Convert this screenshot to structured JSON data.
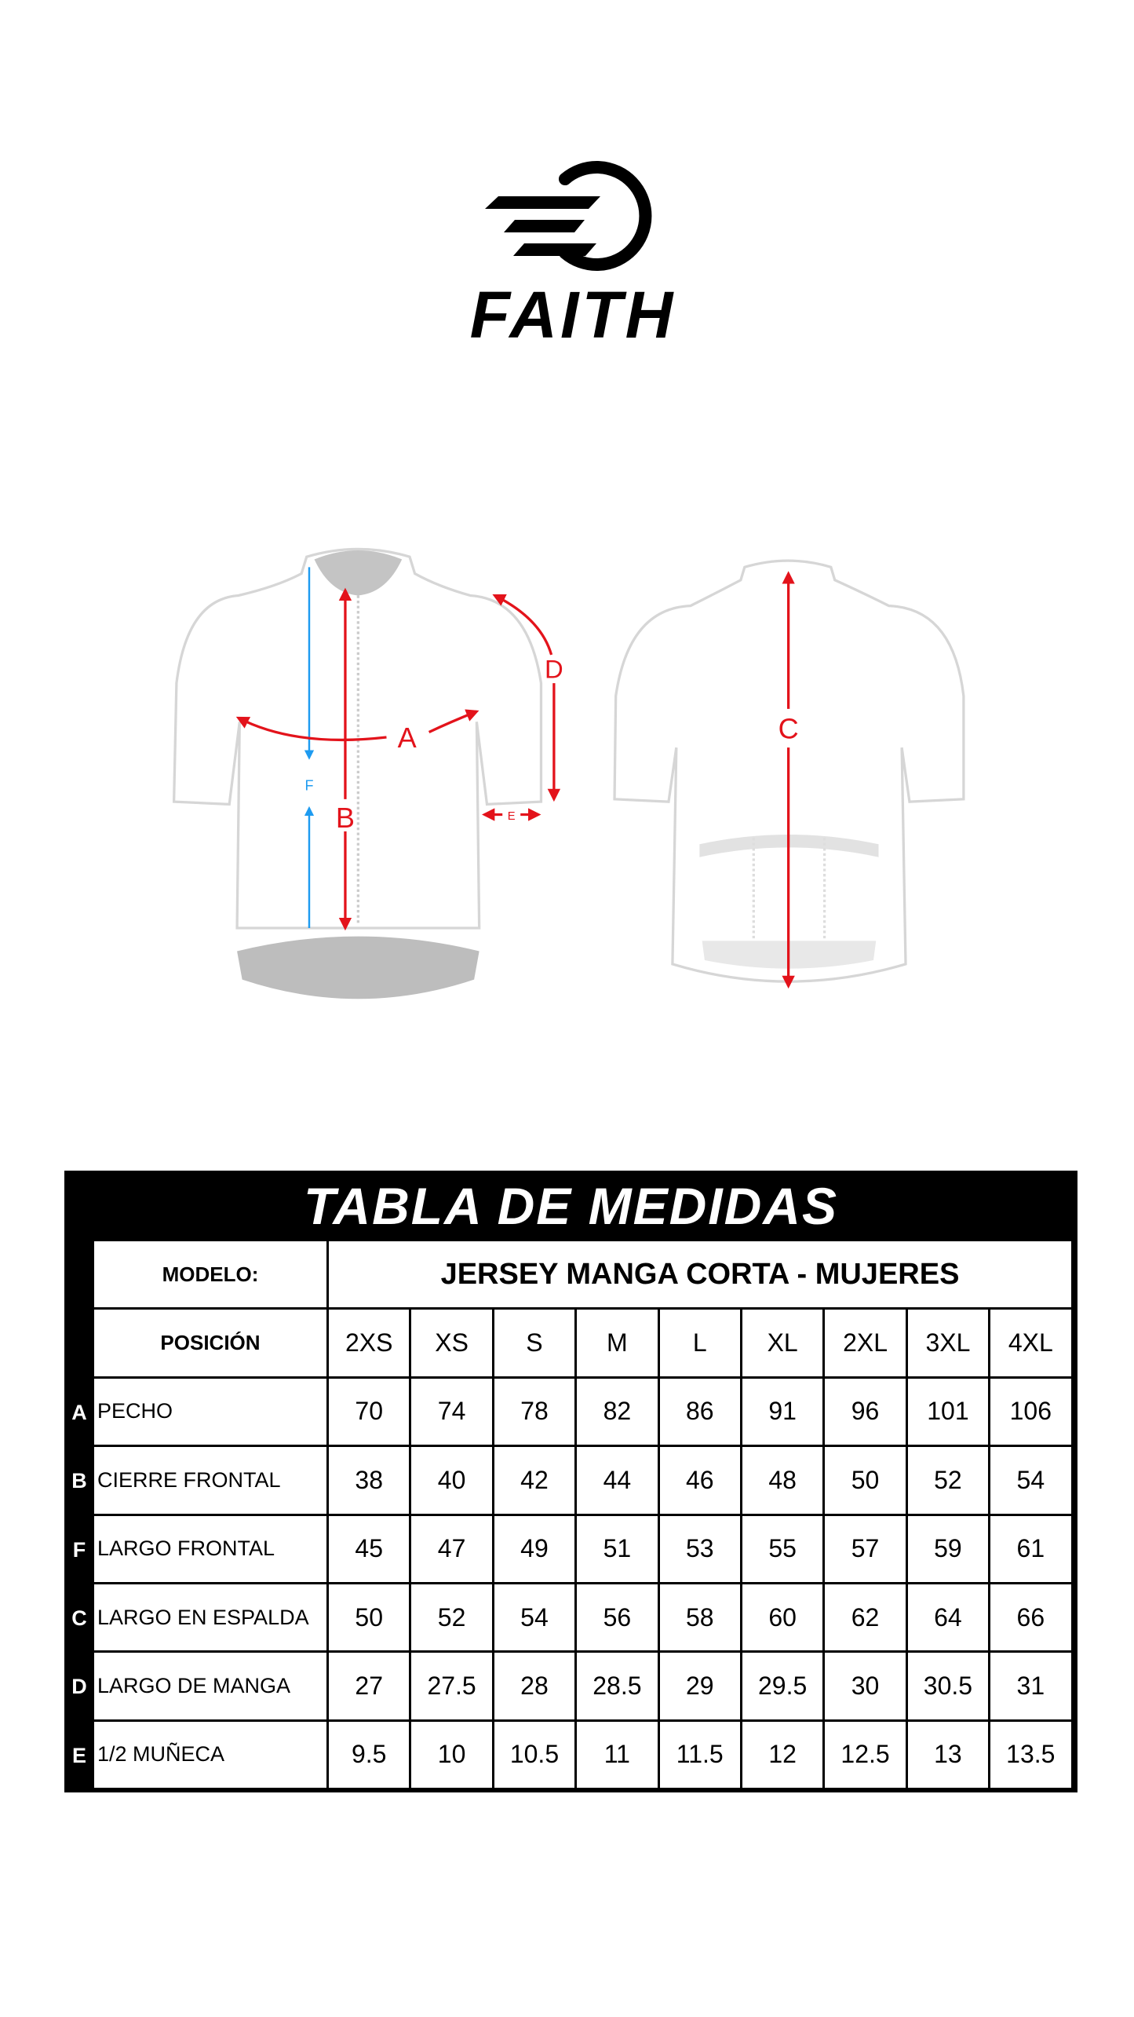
{
  "brand": {
    "name": "FAITH",
    "logo_icon": "speed-circle-logo"
  },
  "diagram": {
    "labels": {
      "A": "A",
      "B": "B",
      "C": "C",
      "D": "D",
      "E": "E",
      "F": "F"
    },
    "colors": {
      "measure_red": "#e3131b",
      "measure_blue": "#1e9bf0",
      "outline": "#d6d6d6",
      "trim": "#bdbdbd"
    }
  },
  "table": {
    "title": "TABLA DE MEDIDAS",
    "model_label": "MODELO:",
    "model_value": "JERSEY MANGA CORTA - MUJERES",
    "position_label": "POSICIÓN",
    "sizes": [
      "2XS",
      "XS",
      "S",
      "M",
      "L",
      "XL",
      "2XL",
      "3XL",
      "4XL"
    ],
    "rows": [
      {
        "letter": "A",
        "label": "PECHO",
        "values": [
          "70",
          "74",
          "78",
          "82",
          "86",
          "91",
          "96",
          "101",
          "106"
        ]
      },
      {
        "letter": "B",
        "label": "CIERRE FRONTAL",
        "values": [
          "38",
          "40",
          "42",
          "44",
          "46",
          "48",
          "50",
          "52",
          "54"
        ]
      },
      {
        "letter": "F",
        "label": "LARGO FRONTAL",
        "values": [
          "45",
          "47",
          "49",
          "51",
          "53",
          "55",
          "57",
          "59",
          "61"
        ]
      },
      {
        "letter": "C",
        "label": "LARGO EN ESPALDA",
        "values": [
          "50",
          "52",
          "54",
          "56",
          "58",
          "60",
          "62",
          "64",
          "66"
        ]
      },
      {
        "letter": "D",
        "label": "LARGO DE MANGA",
        "values": [
          "27",
          "27.5",
          "28",
          "28.5",
          "29",
          "29.5",
          "30",
          "30.5",
          "31"
        ]
      },
      {
        "letter": "E",
        "label": "1/2 MUÑECA",
        "values": [
          "9.5",
          "10",
          "10.5",
          "11",
          "11.5",
          "12",
          "12.5",
          "13",
          "13.5"
        ]
      }
    ]
  }
}
